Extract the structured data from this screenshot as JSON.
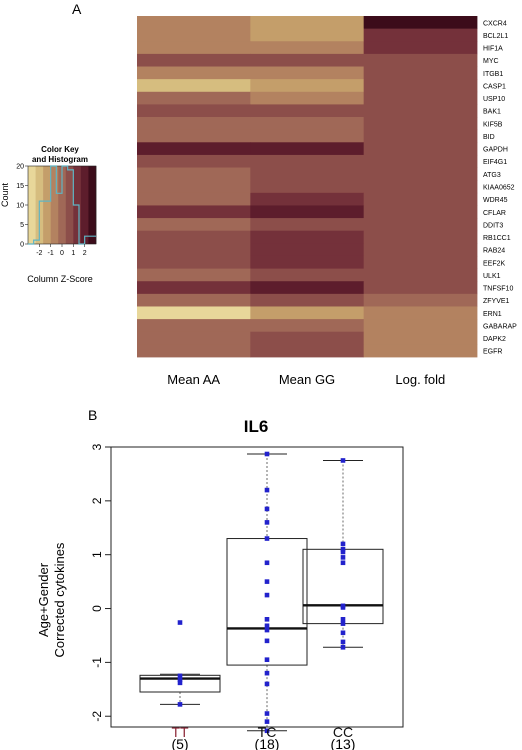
{
  "panel_a": {
    "label": "A",
    "palette": [
      "#e8d79a",
      "#d6bd7f",
      "#c49e6a",
      "#b38260",
      "#a06857",
      "#8c4e4a",
      "#74313a",
      "#5d1d2c",
      "#3c0c1a"
    ],
    "color_key": {
      "title": "Color Key",
      "subtitle": "and Histogram",
      "ylabel": "Count",
      "xlabel": "Column Z-Score",
      "yticks": [
        "0",
        "5",
        "10",
        "15",
        "20"
      ],
      "xticks": [
        "-2",
        "-1",
        "0",
        "1",
        "2"
      ]
    }
  },
  "panel_b": {
    "label": "B"
  },
  "chart_data": [
    {
      "type": "heatmap",
      "columns": [
        "Mean AA",
        "Mean GG",
        "Log. fold"
      ],
      "rows": [
        "CXCR4",
        "BCL2L1",
        "HIF1A",
        "MYC",
        "ITGB1",
        "CASP1",
        "USP10",
        "BAK1",
        "KIF5B",
        "BID",
        "GAPDH",
        "EIF4G1",
        "ATG3",
        "KIAA0652",
        "WDR45",
        "CFLAR",
        "DDIT3",
        "RB1CC1",
        "RAB24",
        "EEF2K",
        "ULK1",
        "TNFSF10",
        "ZFYVE1",
        "ERN1",
        "GABARAP",
        "DAPK2",
        "EGFR"
      ],
      "values": [
        [
          -0.4,
          -1.4,
          2.4
        ],
        [
          -0.7,
          -1.2,
          1.5
        ],
        [
          -0.8,
          -1.0,
          1.4
        ],
        [
          0.5,
          0.4,
          0.6
        ],
        [
          -0.4,
          -0.6,
          0.6
        ],
        [
          -2.3,
          -1.6,
          0.6
        ],
        [
          0.1,
          -0.4,
          0.6
        ],
        [
          0.6,
          0.6,
          0.6
        ],
        [
          0.0,
          -0.3,
          0.6
        ],
        [
          0.1,
          0.1,
          0.6
        ],
        [
          2.2,
          2.0,
          0.6
        ],
        [
          0.4,
          0.9,
          0.6
        ],
        [
          0.0,
          0.5,
          0.6
        ],
        [
          0.0,
          0.8,
          0.6
        ],
        [
          0.0,
          1.0,
          0.6
        ],
        [
          1.2,
          1.8,
          0.5
        ],
        [
          0.0,
          0.6,
          0.5
        ],
        [
          0.5,
          1.2,
          0.5
        ],
        [
          0.4,
          1.0,
          0.4
        ],
        [
          0.6,
          1.2,
          0.4
        ],
        [
          0.3,
          0.7,
          0.4
        ],
        [
          1.3,
          2.0,
          0.4
        ],
        [
          0.1,
          0.6,
          0.3
        ],
        [
          -2.4,
          -1.4,
          -0.5
        ],
        [
          -0.2,
          0.0,
          -0.6
        ],
        [
          0.0,
          0.4,
          -0.6
        ],
        [
          0.2,
          0.6,
          -0.7
        ]
      ]
    },
    {
      "type": "bar",
      "title": "Color Key and Histogram",
      "xlabel": "Column Z-Score",
      "ylabel": "Count",
      "x": [
        -2.75,
        -2.25,
        -1.75,
        -1.25,
        -0.75,
        -0.25,
        0.25,
        0.75,
        1.25,
        1.75,
        2.25,
        2.75
      ],
      "values": [
        0,
        1,
        11,
        11,
        20,
        13,
        20,
        19,
        10,
        0,
        2,
        2
      ],
      "xlim": [
        -3,
        3
      ],
      "ylim": [
        0,
        20
      ]
    },
    {
      "type": "box",
      "title": "IL6",
      "ylabel": "Age+Gender\nCorrected cytokines",
      "categories": [
        "TT",
        "TC",
        "CC"
      ],
      "counts": [
        "(5)",
        "(18)",
        "(13)"
      ],
      "category_colors": [
        "#8e2a3a",
        "#111111",
        "#111111"
      ],
      "ylim": [
        -2.2,
        3.0
      ],
      "yticks": [
        -2,
        -1,
        0,
        1,
        2,
        3
      ],
      "boxes": [
        {
          "min": -1.78,
          "q1": -1.55,
          "median": -1.3,
          "q3": -1.24,
          "max": -1.22
        },
        {
          "min": -2.27,
          "q1": -1.05,
          "median": -0.37,
          "q3": 1.3,
          "max": 2.87
        },
        {
          "min": -0.72,
          "q1": -0.28,
          "median": 0.06,
          "q3": 1.1,
          "max": 2.75
        }
      ],
      "points": [
        [
          -0.26,
          -1.25,
          -1.32,
          -1.38,
          -1.78
        ],
        [
          2.87,
          2.2,
          1.85,
          1.6,
          1.3,
          0.85,
          0.5,
          0.25,
          -0.2,
          -0.32,
          -0.4,
          -0.6,
          -0.95,
          -1.2,
          -1.4,
          -1.95,
          -2.1,
          -2.27
        ],
        [
          2.75,
          1.2,
          1.1,
          1.05,
          0.95,
          0.85,
          0.05,
          0.02,
          -0.2,
          -0.28,
          -0.45,
          -0.62,
          -0.72
        ]
      ]
    }
  ]
}
